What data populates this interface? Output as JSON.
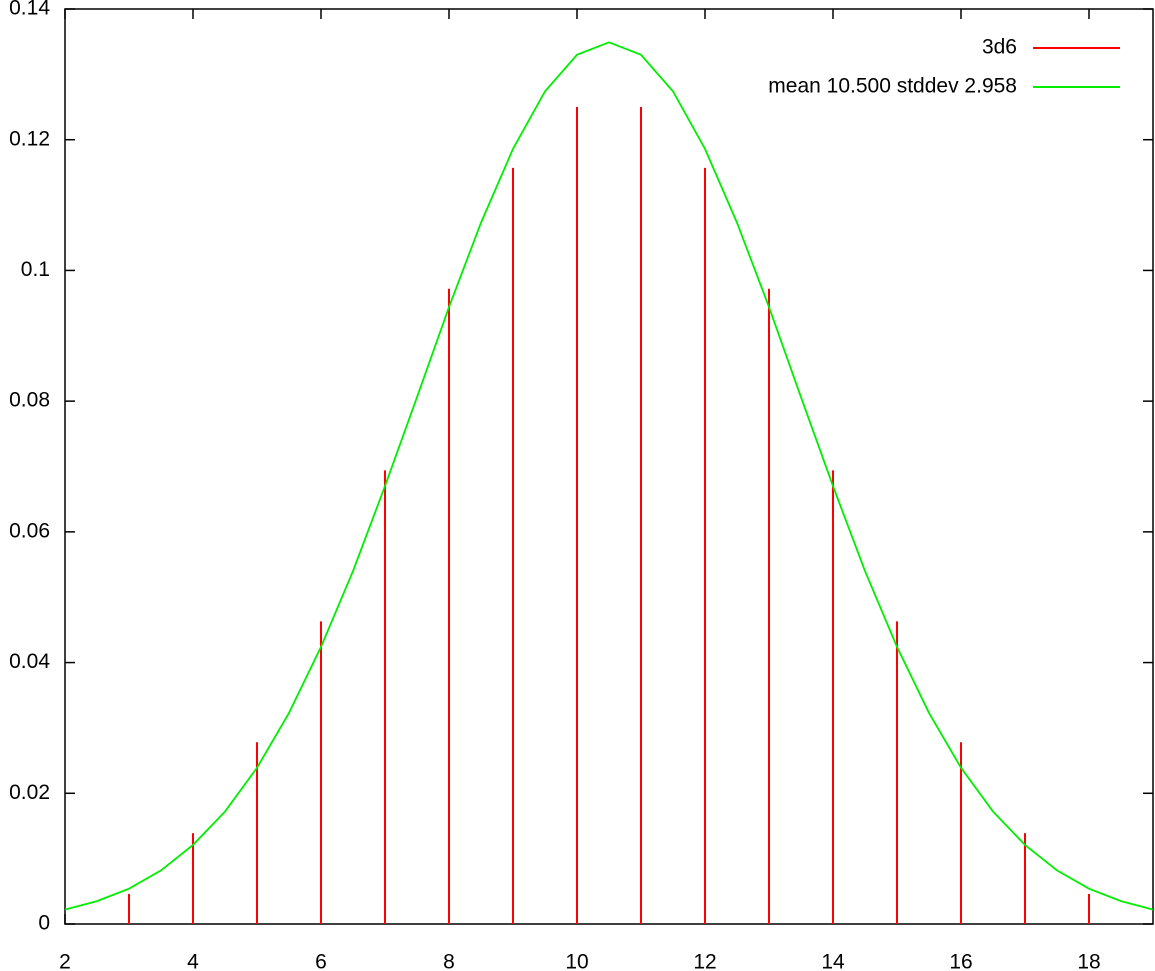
{
  "chart_data": {
    "type": "line",
    "xlim": [
      2,
      19
    ],
    "xticks": [
      2,
      4,
      6,
      8,
      10,
      12,
      14,
      16,
      18
    ],
    "ylim": [
      0,
      0.14
    ],
    "yticks": [
      0,
      0.02,
      0.04,
      0.06,
      0.08,
      0.1,
      0.12,
      0.14
    ],
    "legend": "top right",
    "series": [
      {
        "name": "3d6",
        "color": "#ff0000",
        "style": "impulses",
        "x": [
          3,
          4,
          5,
          6,
          7,
          8,
          9,
          10,
          11,
          12,
          13,
          14,
          15,
          16,
          17,
          18
        ],
        "values": [
          0.0046,
          0.0139,
          0.0278,
          0.0463,
          0.0694,
          0.0972,
          0.1157,
          0.125,
          0.125,
          0.1157,
          0.0972,
          0.0694,
          0.0463,
          0.0278,
          0.0139,
          0.0046
        ]
      },
      {
        "name": "mean 10.500 stddev 2.958",
        "color": "#00ee00",
        "style": "lines",
        "x": [
          2,
          2.5,
          3,
          3.5,
          4,
          4.5,
          5,
          5.5,
          6,
          6.5,
          7,
          7.5,
          8,
          8.5,
          9,
          9.5,
          10,
          10.5,
          11,
          11.5,
          12,
          12.5,
          13,
          13.5,
          14,
          14.5,
          15,
          15.5,
          16,
          16.5,
          17,
          17.5,
          18,
          18.5,
          19
        ],
        "values": [
          0.0022,
          0.0035,
          0.0054,
          0.0082,
          0.0121,
          0.0172,
          0.0239,
          0.0323,
          0.0424,
          0.054,
          0.067,
          0.0806,
          0.0944,
          0.1073,
          0.1186,
          0.1274,
          0.133,
          0.1349,
          0.133,
          0.1274,
          0.1186,
          0.1073,
          0.0944,
          0.0806,
          0.067,
          0.054,
          0.0424,
          0.0323,
          0.0239,
          0.0172,
          0.0121,
          0.0082,
          0.0054,
          0.0035,
          0.0022
        ]
      }
    ]
  }
}
